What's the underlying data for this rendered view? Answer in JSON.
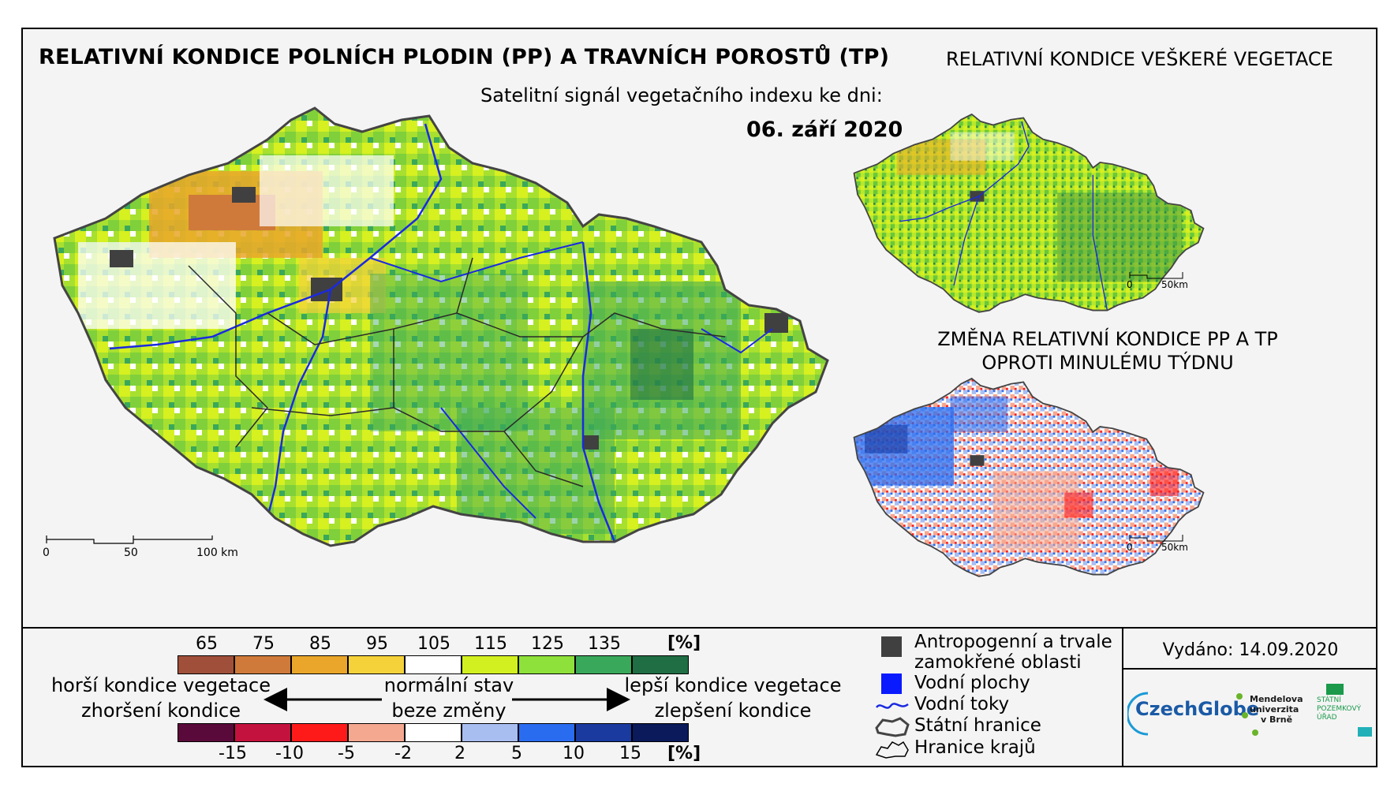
{
  "titles": {
    "main": "RELATIVNÍ KONDICE POLNÍCH PLODIN (PP) A TRAVNÍCH POROSTŮ (TP)",
    "subtitle": "Satelitní signál vegetačního indexu ke dni:",
    "date": "06. září 2020",
    "all_vegetation": "RELATIVNÍ KONDICE VEŠKERÉ VEGETACE",
    "change_line1": "ZMĚNA RELATIVNÍ KONDICE PP A TP",
    "change_line2": "OPROTI MINULÉMU TÝDNU"
  },
  "scale_bars": {
    "main": [
      "0",
      "50",
      "100 km"
    ],
    "small": [
      "0",
      "50km"
    ]
  },
  "condition_legend": {
    "ticks": [
      "65",
      "75",
      "85",
      "95",
      "105",
      "115",
      "125",
      "135"
    ],
    "unit": "[%]",
    "colors": [
      "#a0503a",
      "#cf7a3a",
      "#e9a62a",
      "#f5d23a",
      "#ffffff",
      "#d2f020",
      "#8ee03a",
      "#3aa85a",
      "#1f6e44"
    ]
  },
  "change_legend": {
    "ticks": [
      "-15",
      "-10",
      "-5",
      "-2",
      "2",
      "5",
      "10",
      "15"
    ],
    "unit": "[%]",
    "colors": [
      "#5a0a3a",
      "#c4123e",
      "#ff1a1a",
      "#f5a890",
      "#ffffff",
      "#a8bdf0",
      "#2a6cf0",
      "#1a3aa0",
      "#0a1a5a"
    ]
  },
  "arrows_text": {
    "worse_condition": "horší kondice vegetace",
    "worsening": "zhoršení kondice",
    "normal_state": "normální stav",
    "no_change": "beze změny",
    "better_condition": "lepší kondice vegetace",
    "improvement": "zlepšení kondice"
  },
  "symbol_legend": [
    {
      "icon": "dark-square",
      "label": "Antropogenní a trvale zamokřené oblasti",
      "color": "#404040"
    },
    {
      "icon": "blue-square",
      "label": "Vodní plochy",
      "color": "#0a1aff"
    },
    {
      "icon": "river-line",
      "label": "Vodní toky",
      "color": "#1a2ae0"
    },
    {
      "icon": "state-border",
      "label": "Státní hranice"
    },
    {
      "icon": "region-border",
      "label": "Hranice krajů"
    }
  ],
  "issued": "Vydáno: 14.09.2020",
  "logos": {
    "czechglobe": "CzechGlobe",
    "mendelu": [
      "Mendelova",
      "univerzita",
      "v Brně"
    ],
    "spu": [
      "STÁTNÍ",
      "POZEMKOVÝ",
      "ÚŘAD"
    ]
  }
}
